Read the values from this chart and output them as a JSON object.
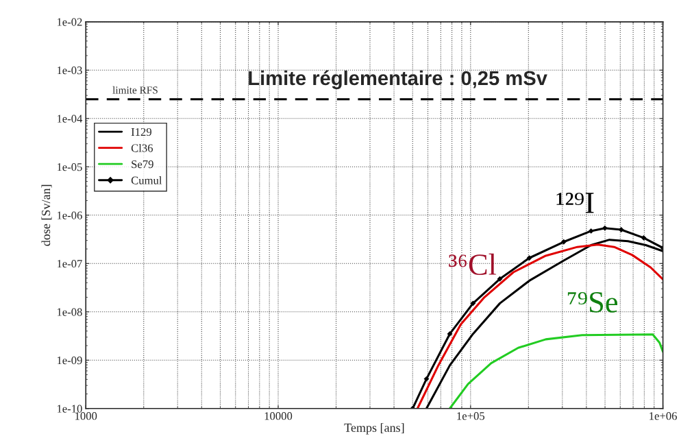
{
  "chart_data": {
    "type": "line",
    "xlabel": "Temps [ans]",
    "ylabel": "dose [Sv/an]",
    "log": "xy",
    "grid": true,
    "legend": "center left",
    "xlim": [
      1000,
      1000000
    ],
    "ylim": [
      1e-10,
      0.01
    ],
    "xticks": [
      1000,
      10000,
      {
        "value": 100000,
        "label": "1e+05"
      },
      {
        "value": 1000000,
        "label": "1e+06"
      }
    ],
    "yticks": [
      {
        "value": 1e-10,
        "label": "1e-10"
      },
      {
        "value": 1e-09,
        "label": "1e-09"
      },
      {
        "value": 1e-08,
        "label": "1e-08"
      },
      {
        "value": 1e-07,
        "label": "1e-07"
      },
      {
        "value": 1e-06,
        "label": "1e-06"
      },
      {
        "value": 1e-05,
        "label": "1e-05"
      },
      {
        "value": 0.0001,
        "label": "1e-04"
      },
      {
        "value": 0.001,
        "label": "1e-03"
      },
      {
        "value": 0.01,
        "label": "1e-02"
      }
    ],
    "series": [
      {
        "name": "I129",
        "color": "#000000",
        "x": [
          59000,
          78000,
          103000,
          142000,
          202000,
          305000,
          423000,
          527000,
          658000,
          815000,
          1000000
        ],
        "values": [
          1e-10,
          7.8e-10,
          3.5e-09,
          1.5e-08,
          4.4e-08,
          1.15e-07,
          2.4e-07,
          3.1e-07,
          2.9e-07,
          2.4e-07,
          1.8e-07
        ]
      },
      {
        "name": "Cl36",
        "color": "#e00000",
        "x": [
          53000,
          68000,
          89000,
          118000,
          167000,
          246000,
          359000,
          459000,
          558000,
          692000,
          863000,
          1000000
        ],
        "values": [
          1e-10,
          7.8e-10,
          5.5e-09,
          2e-08,
          6.6e-08,
          1.45e-07,
          2.2e-07,
          2.45e-07,
          2.2e-07,
          1.5e-07,
          8.3e-08,
          4.7e-08
        ]
      },
      {
        "name": "Se79",
        "color": "#22cc22",
        "x": [
          78000,
          97000,
          128000,
          177000,
          246000,
          380000,
          885000,
          960000,
          1000000
        ],
        "values": [
          1e-10,
          3.2e-10,
          8.7e-10,
          1.8e-09,
          2.7e-09,
          3.3e-09,
          3.4e-09,
          2.3e-09,
          1.5e-09
        ]
      },
      {
        "name": "Cumul",
        "color": "#000000",
        "marker": "diamond",
        "x": [
          50000,
          59000,
          78000,
          103000,
          142000,
          202000,
          305000,
          423000,
          499000,
          607000,
          794000,
          1000000
        ],
        "values": [
          1e-10,
          4.1e-10,
          3.5e-09,
          1.5e-08,
          4.8e-08,
          1.3e-07,
          2.8e-07,
          4.7e-07,
          5.4e-07,
          5e-07,
          3.4e-07,
          2.1e-07
        ]
      }
    ],
    "ref_lines": [
      {
        "axis": "y",
        "value": 0.00025,
        "label": "limite RFS",
        "color": "#000000",
        "line_style": "dashed"
      }
    ],
    "annotations": [
      "Limite réglementaire : 0,25 mSv",
      "¹²⁹I",
      "³⁶Cl",
      "⁷⁹Se"
    ]
  }
}
